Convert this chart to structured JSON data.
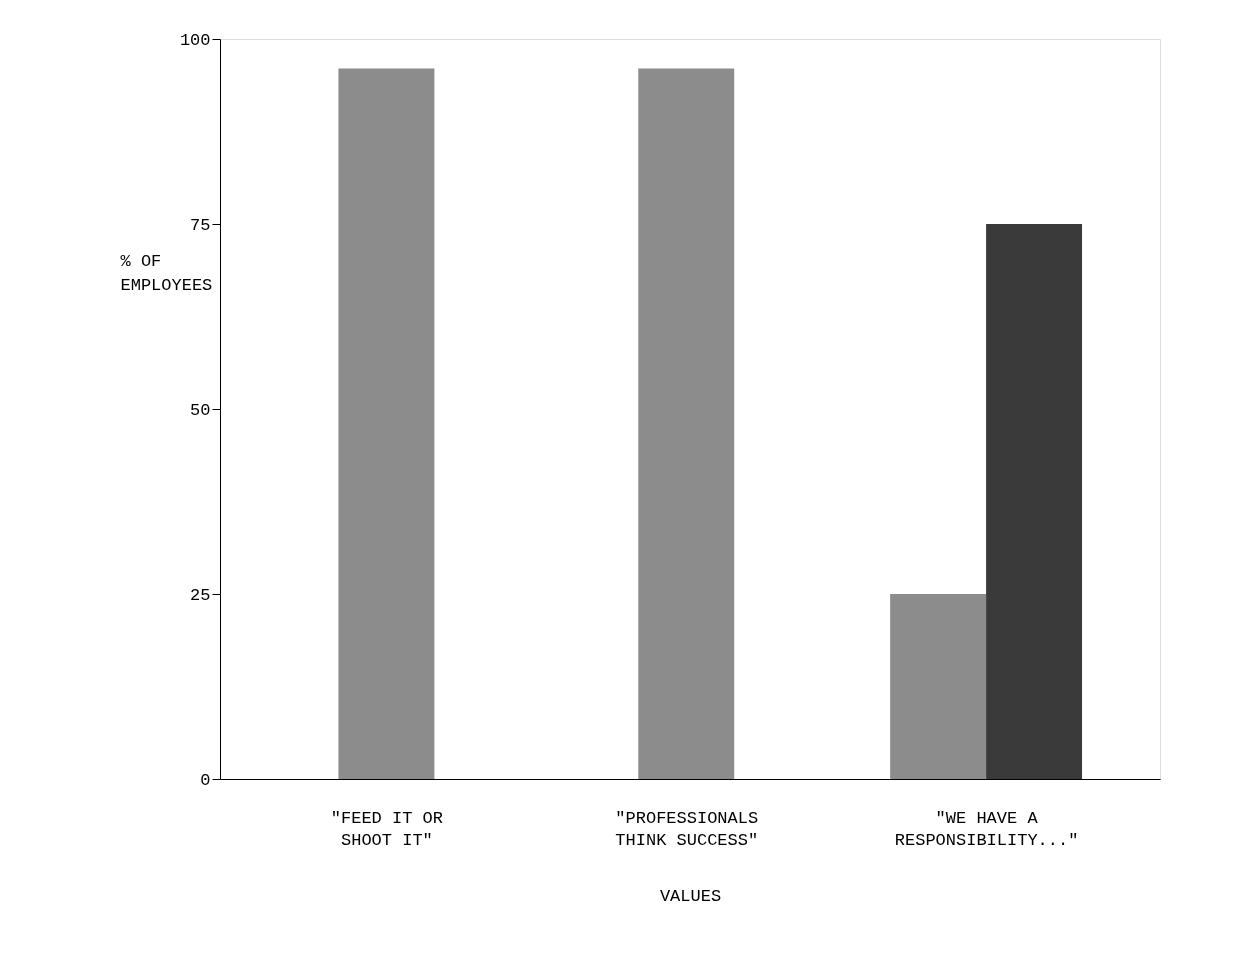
{
  "chart_data": {
    "type": "bar",
    "xlabel": "VALUES",
    "ylabel": "% OF\nEMPLOYEES",
    "categories": [
      "\"FEED IT OR\nSHOOT IT\"",
      "\"PROFESSIONALS\nTHINK SUCCESS\"",
      "\"WE HAVE A\nRESPONSIBILITY...\""
    ],
    "series": [
      {
        "color": "#8c8c8c",
        "values": [
          96,
          96,
          25
        ]
      },
      {
        "color": "#3a3a3a",
        "values": [
          null,
          null,
          75
        ]
      }
    ],
    "ylim": [
      0,
      100
    ],
    "yticks": [
      0,
      25,
      50,
      75,
      100
    ],
    "grid": false,
    "legend": false
  }
}
